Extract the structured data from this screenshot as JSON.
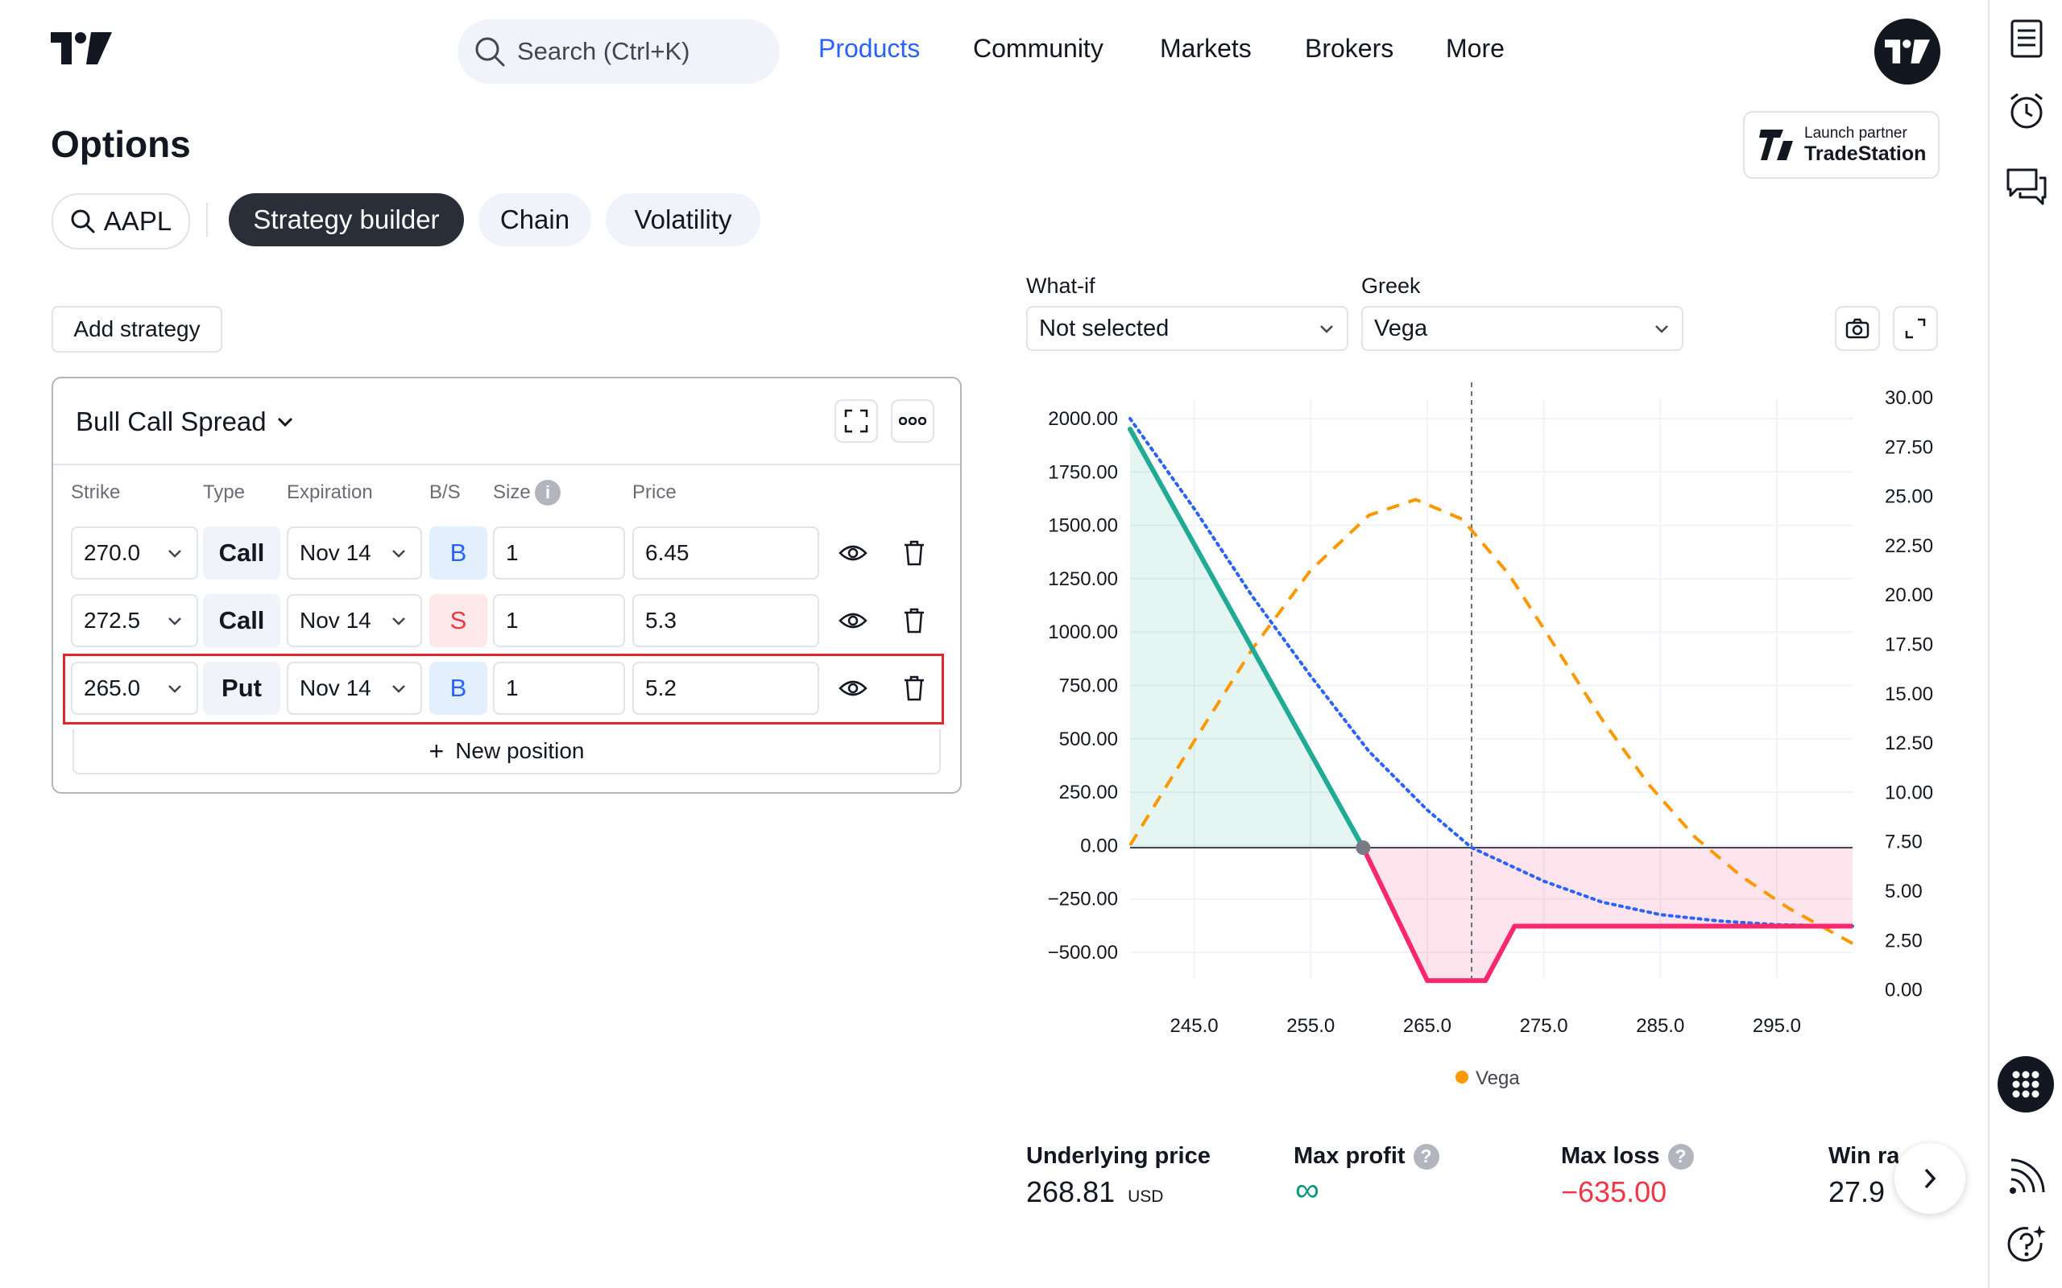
{
  "header": {
    "search_placeholder": "Search (Ctrl+K)",
    "nav": [
      "Products",
      "Community",
      "Markets",
      "Brokers",
      "More"
    ],
    "active_nav": "Products"
  },
  "page": {
    "title": "Options",
    "partner_line1": "Launch partner",
    "partner_line2": "TradeStation",
    "symbol": "AAPL",
    "tabs": [
      "Strategy builder",
      "Chain",
      "Volatility"
    ],
    "add_strategy": "Add strategy"
  },
  "strategy": {
    "name": "Bull Call Spread",
    "columns": [
      "Strike",
      "Type",
      "Expiration",
      "B/S",
      "Size",
      "Price"
    ],
    "rows": [
      {
        "strike": "270.0",
        "type": "Call",
        "expiration": "Nov 14",
        "bs": "B",
        "size": "1",
        "price": "6.45"
      },
      {
        "strike": "272.5",
        "type": "Call",
        "expiration": "Nov 14",
        "bs": "S",
        "size": "1",
        "price": "5.3"
      },
      {
        "strike": "265.0",
        "type": "Put",
        "expiration": "Nov 14",
        "bs": "B",
        "size": "1",
        "price": "5.2"
      }
    ],
    "new_position": "New position"
  },
  "controls": {
    "whatif_label": "What-if",
    "whatif_value": "Not selected",
    "greek_label": "Greek",
    "greek_value": "Vega"
  },
  "chart_data": {
    "type": "line",
    "x_ticks": [
      "245.0",
      "255.0",
      "265.0",
      "275.0",
      "285.0",
      "295.0"
    ],
    "xlim": [
      239.5,
      301.5
    ],
    "y_left_ticks": [
      "2000.00",
      "1750.00",
      "1500.00",
      "1250.00",
      "1000.00",
      "750.00",
      "500.00",
      "250.00",
      "0.00",
      "−250.00",
      "−500.00"
    ],
    "y_left_range": [
      -500,
      2000
    ],
    "y_right_ticks": [
      "30.00",
      "27.50",
      "25.00",
      "22.50",
      "20.00",
      "17.50",
      "15.00",
      "12.50",
      "10.00",
      "7.50",
      "5.00",
      "2.50",
      "0.00"
    ],
    "y_right_range": [
      0,
      30
    ],
    "underlying_marker_x": 268.81,
    "pnl_series": [
      [
        239.5,
        2000
      ],
      [
        259.5,
        0
      ],
      [
        265.0,
        -635
      ],
      [
        270.0,
        -635
      ],
      [
        272.5,
        -375
      ],
      [
        301.5,
        -375
      ]
    ],
    "breakeven_x": 259.5,
    "theoretical_series": [
      [
        239.5,
        2050
      ],
      [
        245,
        1620
      ],
      [
        250,
        1200
      ],
      [
        255,
        820
      ],
      [
        260,
        460
      ],
      [
        265,
        180
      ],
      [
        268.81,
        0
      ],
      [
        275,
        -160
      ],
      [
        280,
        -260
      ],
      [
        285,
        -320
      ],
      [
        290,
        -350
      ],
      [
        295,
        -368
      ],
      [
        301.5,
        -375
      ]
    ],
    "vega_series": [
      [
        239.5,
        7.5
      ],
      [
        245,
        12.8
      ],
      [
        250,
        17.5
      ],
      [
        255,
        21.5
      ],
      [
        260,
        24.3
      ],
      [
        264,
        25.1
      ],
      [
        268,
        24.1
      ],
      [
        272,
        21.3
      ],
      [
        276,
        17.6
      ],
      [
        280,
        13.9
      ],
      [
        284,
        10.6
      ],
      [
        288,
        7.9
      ],
      [
        292,
        5.9
      ],
      [
        296,
        4.3
      ],
      [
        301.5,
        2.5
      ]
    ],
    "legend": [
      "Vega"
    ],
    "colors": {
      "profit": "#22ab94",
      "loss": "#f7296b",
      "theoretical": "#2962ff",
      "vega": "#ff9800"
    }
  },
  "stats": {
    "underlying_label": "Underlying price",
    "underlying_value": "268.81",
    "underlying_unit": "USD",
    "max_profit_label": "Max profit",
    "max_profit_value": "∞",
    "max_loss_label": "Max loss",
    "max_loss_value": "−635.00",
    "win_label": "Win ra",
    "win_value": "27.9"
  }
}
